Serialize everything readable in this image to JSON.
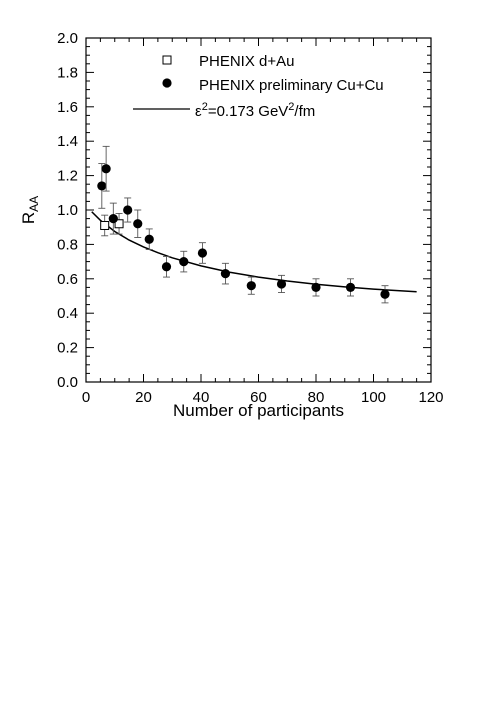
{
  "chart_data": {
    "type": "scatter",
    "xlabel": "Number of participants",
    "ylabel": {
      "main": "R",
      "sub": "AA"
    },
    "xlim": [
      0,
      120
    ],
    "ylim": [
      0.0,
      2.0
    ],
    "x_ticks": [
      0,
      20,
      40,
      60,
      80,
      100,
      120
    ],
    "y_ticks": [
      "0.0",
      "0.2",
      "0.4",
      "0.6",
      "0.8",
      "1.0",
      "1.2",
      "1.4",
      "1.6",
      "1.8",
      "2.0"
    ],
    "grid": false,
    "legend_position": "top-right",
    "series": [
      {
        "name": "PHENIX d+Au",
        "marker": "open-square",
        "points": [
          {
            "x": 6.5,
            "y": 0.91,
            "err": 0.06
          },
          {
            "x": 11.5,
            "y": 0.92,
            "err": 0.06
          }
        ]
      },
      {
        "name": "PHENIX preliminary Cu+Cu",
        "marker": "filled-circle",
        "points": [
          {
            "x": 5.5,
            "y": 1.14,
            "err": 0.13
          },
          {
            "x": 7.0,
            "y": 1.24,
            "err": 0.13
          },
          {
            "x": 9.5,
            "y": 0.95,
            "err": 0.09
          },
          {
            "x": 14.5,
            "y": 1.0,
            "err": 0.07
          },
          {
            "x": 18.0,
            "y": 0.92,
            "err": 0.08
          },
          {
            "x": 22.0,
            "y": 0.83,
            "err": 0.06
          },
          {
            "x": 28.0,
            "y": 0.67,
            "err": 0.06
          },
          {
            "x": 34.0,
            "y": 0.7,
            "err": 0.06
          },
          {
            "x": 40.5,
            "y": 0.75,
            "err": 0.06
          },
          {
            "x": 48.5,
            "y": 0.63,
            "err": 0.06
          },
          {
            "x": 57.5,
            "y": 0.56,
            "err": 0.05
          },
          {
            "x": 68.0,
            "y": 0.57,
            "err": 0.05
          },
          {
            "x": 80.0,
            "y": 0.55,
            "err": 0.05
          },
          {
            "x": 92.0,
            "y": 0.55,
            "err": 0.05
          },
          {
            "x": 104.0,
            "y": 0.51,
            "err": 0.05
          }
        ]
      },
      {
        "name": "ε²=0.173 GeV²/fm",
        "legend_parts": [
          "ε",
          "2",
          "=0.173 GeV",
          "2",
          "/fm"
        ],
        "marker": "line",
        "points": [
          {
            "x": 2,
            "y": 0.99
          },
          {
            "x": 5,
            "y": 0.94
          },
          {
            "x": 10,
            "y": 0.875
          },
          {
            "x": 15,
            "y": 0.825
          },
          {
            "x": 20,
            "y": 0.785
          },
          {
            "x": 25,
            "y": 0.752
          },
          {
            "x": 30,
            "y": 0.722
          },
          {
            "x": 40,
            "y": 0.675
          },
          {
            "x": 50,
            "y": 0.638
          },
          {
            "x": 60,
            "y": 0.61
          },
          {
            "x": 70,
            "y": 0.587
          },
          {
            "x": 80,
            "y": 0.568
          },
          {
            "x": 90,
            "y": 0.553
          },
          {
            "x": 100,
            "y": 0.54
          },
          {
            "x": 115,
            "y": 0.525
          }
        ]
      }
    ]
  }
}
